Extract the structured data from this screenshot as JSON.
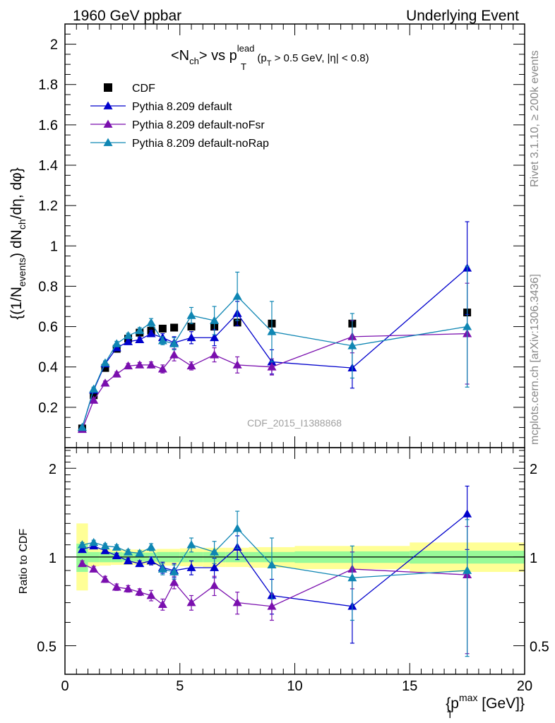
{
  "header": {
    "left": "1960 GeV ppbar",
    "right": "Underlying Event"
  },
  "side_labels": {
    "rivet": "Rivet 3.1.10, ≥ 200k events",
    "mcplots": "mcplots.cern.ch [arXiv:1306.3436]"
  },
  "watermark": "CDF_2015_I1388868",
  "plot_title": {
    "a": "<N",
    "a_sub": "ch",
    "b": "> vs p",
    "b_sup": "lead",
    "b_sub": "T",
    "c_open": "(p",
    "c_sub": "T",
    "c_rest": " > 0.5 GeV, |η| < 0.8)"
  },
  "ylabel_main": {
    "p1": "{(1/N",
    "p1_sub": "events",
    "p2": ") dN",
    "p2_sub": "ch",
    "p3": "/dη, dφ}"
  },
  "ylabel_ratio": "Ratio to CDF",
  "xlabel": {
    "p1": "{p",
    "p1_sup": "max",
    "p1_sub": "T",
    "p2": " [GeV]}"
  },
  "colors": {
    "cdf": "#000000",
    "default": "#0000cc",
    "noFsr": "#7a0fae",
    "noRap": "#0f86b3",
    "band_inner": "#98fa98",
    "band_outer": "#ffff96"
  },
  "chart_data": {
    "type": "scatter",
    "xlim": [
      0,
      20
    ],
    "x_ticks": [
      "0",
      "5",
      "10",
      "15",
      "20"
    ],
    "main": {
      "ylim": [
        0,
        2.1
      ],
      "y_ticks": [
        "0.2",
        "0.4",
        "0.6",
        "0.8",
        "1",
        "1.2",
        "1.4",
        "1.6",
        "1.8",
        "2"
      ]
    },
    "ratio": {
      "ylim": [
        0.4,
        2.35
      ],
      "log_y": true,
      "y_ticks": [
        "0.5",
        "1",
        "2"
      ]
    },
    "x": [
      0.75,
      1.25,
      1.75,
      2.25,
      2.75,
      3.25,
      3.75,
      4.25,
      4.75,
      5.5,
      6.5,
      7.5,
      9.0,
      12.5,
      17.5
    ],
    "legend_position": "top-left",
    "series": [
      {
        "name": "CDF",
        "key": "cdf",
        "marker": "square",
        "values": [
          0.095,
          0.26,
          0.395,
          0.49,
          0.54,
          0.57,
          0.58,
          0.59,
          0.595,
          0.6,
          0.6,
          0.62,
          0.615,
          0.615,
          0.67
        ]
      },
      {
        "name": "Pythia 8.209 default",
        "key": "default",
        "marker": "triangle",
        "values": [
          0.1,
          0.285,
          0.415,
          0.495,
          0.525,
          0.535,
          0.565,
          0.545,
          0.52,
          0.545,
          0.545,
          0.665,
          0.425,
          0.395,
          0.89
        ],
        "errors": [
          0.005,
          0.01,
          0.01,
          0.01,
          0.01,
          0.012,
          0.015,
          0.02,
          0.03,
          0.03,
          0.04,
          0.06,
          0.06,
          0.1,
          0.23
        ],
        "ratio": [
          1.06,
          1.09,
          1.05,
          1.01,
          0.97,
          0.95,
          0.97,
          0.92,
          0.9,
          0.92,
          0.92,
          1.08,
          0.74,
          0.68,
          1.4
        ],
        "ratio_errors": [
          0.02,
          0.02,
          0.02,
          0.02,
          0.02,
          0.02,
          0.03,
          0.04,
          0.05,
          0.05,
          0.07,
          0.1,
          0.1,
          0.17,
          0.34
        ]
      },
      {
        "name": "Pythia 8.209 default-noFsr",
        "key": "noFsr",
        "marker": "triangle",
        "values": [
          0.09,
          0.235,
          0.32,
          0.365,
          0.405,
          0.41,
          0.41,
          0.39,
          0.46,
          0.405,
          0.46,
          0.41,
          0.4,
          0.55,
          0.565
        ],
        "errors": [
          0.005,
          0.01,
          0.01,
          0.01,
          0.012,
          0.012,
          0.015,
          0.02,
          0.03,
          0.02,
          0.035,
          0.04,
          0.04,
          0.08,
          0.25
        ],
        "ratio": [
          0.95,
          0.91,
          0.84,
          0.79,
          0.78,
          0.76,
          0.74,
          0.69,
          0.82,
          0.7,
          0.8,
          0.7,
          0.68,
          0.91,
          0.87
        ],
        "ratio_errors": [
          0.02,
          0.02,
          0.02,
          0.02,
          0.02,
          0.02,
          0.03,
          0.03,
          0.04,
          0.04,
          0.06,
          0.06,
          0.07,
          0.13,
          0.4
        ]
      },
      {
        "name": "Pythia 8.209 default-noRap",
        "key": "noRap",
        "marker": "triangle",
        "values": [
          0.1,
          0.29,
          0.42,
          0.515,
          0.555,
          0.58,
          0.62,
          0.53,
          0.515,
          0.655,
          0.63,
          0.75,
          0.575,
          0.505,
          0.6
        ],
        "errors": [
          0.005,
          0.01,
          0.01,
          0.012,
          0.012,
          0.015,
          0.02,
          0.02,
          0.03,
          0.04,
          0.07,
          0.12,
          0.15,
          0.16,
          0.3
        ],
        "ratio": [
          1.1,
          1.12,
          1.09,
          1.08,
          1.04,
          1.03,
          1.08,
          0.91,
          0.89,
          1.1,
          1.04,
          1.25,
          0.94,
          0.85,
          0.9
        ],
        "ratio_errors": [
          0.02,
          0.02,
          0.02,
          0.02,
          0.02,
          0.02,
          0.03,
          0.04,
          0.05,
          0.06,
          0.09,
          0.18,
          0.22,
          0.24,
          0.44
        ]
      }
    ],
    "cdf_uncertainty_band": {
      "edges": [
        0.5,
        1.0,
        1.5,
        2.0,
        2.5,
        3.0,
        3.5,
        4.0,
        4.5,
        5.0,
        6.0,
        7.0,
        8.0,
        10.0,
        15.0,
        20.0
      ],
      "inner_lo": [
        0.89,
        0.96,
        0.96,
        0.96,
        0.965,
        0.965,
        0.965,
        0.96,
        0.96,
        0.96,
        0.96,
        0.96,
        0.96,
        0.955,
        0.95
      ],
      "inner_hi": [
        1.11,
        1.04,
        1.04,
        1.04,
        1.035,
        1.035,
        1.035,
        1.04,
        1.04,
        1.04,
        1.04,
        1.04,
        1.04,
        1.045,
        1.05
      ],
      "outer_lo": [
        0.77,
        0.93,
        0.935,
        0.94,
        0.94,
        0.94,
        0.94,
        0.935,
        0.935,
        0.93,
        0.925,
        0.925,
        0.92,
        0.91,
        0.89
      ],
      "outer_hi": [
        1.3,
        1.07,
        1.065,
        1.06,
        1.06,
        1.06,
        1.06,
        1.065,
        1.065,
        1.07,
        1.075,
        1.075,
        1.08,
        1.09,
        1.12
      ]
    }
  }
}
